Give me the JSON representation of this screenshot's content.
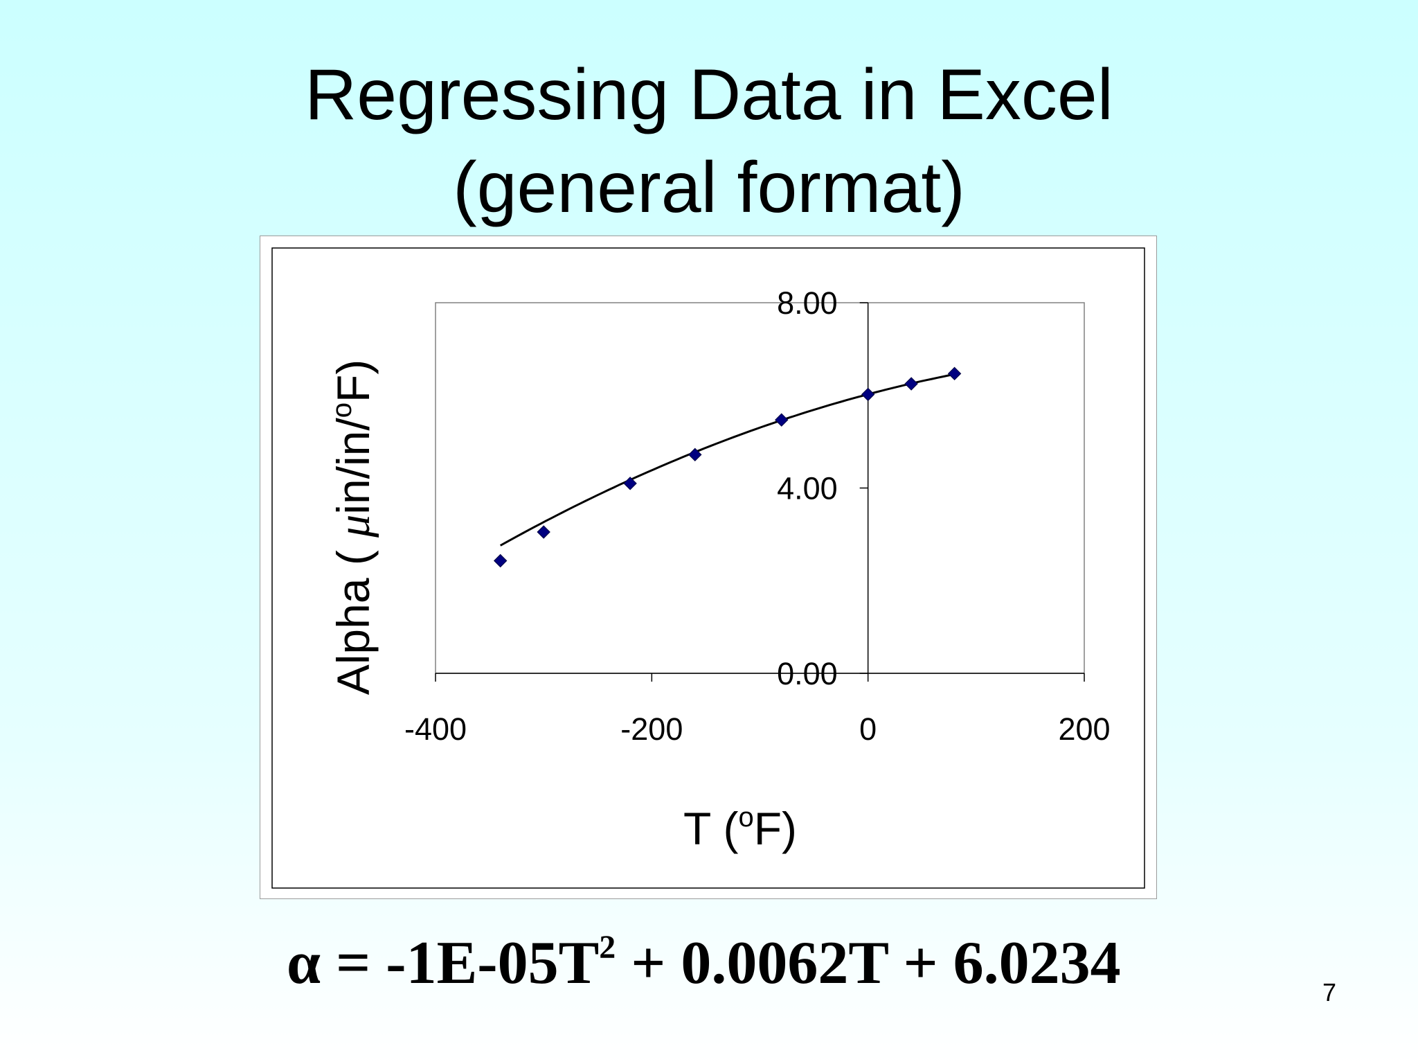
{
  "slide": {
    "title_line1": "Regressing Data in Excel",
    "title_line2": "(general format)",
    "equation": {
      "lhs": "α = -1E-05T",
      "exponent": "2",
      "rhs": " + 0.0062T + 6.0234"
    },
    "page_number": "7"
  },
  "chart_data": {
    "type": "scatter",
    "title": "",
    "xlabel": "T (oF)",
    "ylabel": "Alpha ( μin/in/oF)",
    "xlabel_parts": {
      "pre": "T (",
      "sup": "o",
      "post": "F)"
    },
    "ylabel_parts": {
      "pre": "Alpha ( ",
      "mu": "μ",
      "mid": "in/in/",
      "sup": "o",
      "post": "F)"
    },
    "xlim": [
      -400,
      200
    ],
    "ylim": [
      0,
      8
    ],
    "x_ticks": [
      -400,
      -200,
      0,
      200
    ],
    "x_tick_labels": [
      "-400",
      "-200",
      "0",
      "200"
    ],
    "y_ticks": [
      0,
      4,
      8
    ],
    "y_tick_labels": [
      "0.00",
      "4.00",
      "8.00"
    ],
    "grid": false,
    "legend": "none",
    "series": [
      {
        "x": [
          -340,
          -300,
          -220,
          -160,
          -80,
          0,
          40,
          80
        ],
        "y": [
          2.43,
          3.05,
          4.1,
          4.72,
          5.47,
          6.02,
          6.25,
          6.47
        ],
        "marker": "diamond",
        "color": "#000080"
      }
    ],
    "trendline": {
      "type": "polynomial",
      "coefficients": [
        -1e-05,
        0.0062,
        6.0234
      ],
      "x_range": [
        -340,
        80
      ],
      "color": "#000000"
    }
  }
}
